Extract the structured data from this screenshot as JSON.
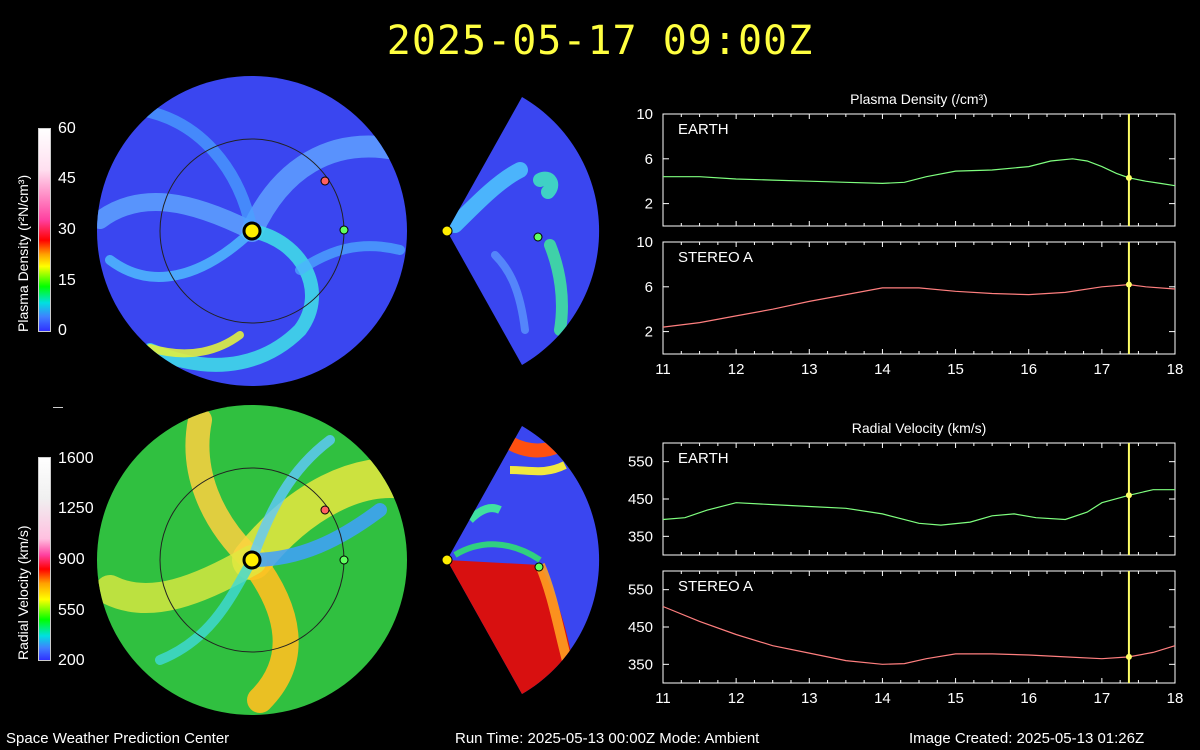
{
  "header": {
    "title": "2025-05-17 09:00Z"
  },
  "footer": {
    "left": "Space Weather Prediction Center",
    "middle": "Run Time: 2025-05-13 00:00Z  Mode: Ambient",
    "right": "Image Created: 2025-05-13 01:26Z"
  },
  "colorbars": {
    "density": {
      "title": "Plasma Density (r²N/cm³)",
      "ticks": [
        "60",
        "45",
        "30",
        "15",
        "0"
      ]
    },
    "velocity": {
      "title": "Radial Velocity (km/s)",
      "ticks": [
        "1600",
        "1250",
        "900",
        "550",
        "200"
      ]
    }
  },
  "colors": {
    "earth_line": "#7fff7f",
    "stereo_line": "#ff7f7f",
    "current_time": "#ffff66",
    "axes": "#ffffff"
  },
  "chart_data": [
    {
      "type": "line",
      "title": "Plasma Density (/cm³)",
      "subplots": [
        {
          "label": "EARTH",
          "ylim": [
            0,
            10
          ],
          "yticks": [
            2,
            6,
            10
          ],
          "x": [
            11,
            11.5,
            12,
            12.5,
            13,
            13.5,
            14,
            14.3,
            14.6,
            15,
            15.5,
            16,
            16.3,
            16.6,
            16.8,
            17,
            17.2,
            17.37,
            17.6,
            17.8,
            18
          ],
          "values": [
            4.4,
            4.4,
            4.2,
            4.1,
            4.0,
            3.9,
            3.8,
            3.9,
            4.4,
            4.9,
            5.0,
            5.3,
            5.8,
            6.0,
            5.8,
            5.3,
            4.7,
            4.3,
            4.0,
            3.8,
            3.6
          ],
          "marker_value": 4.3
        },
        {
          "label": "STEREO A",
          "ylim": [
            0,
            10
          ],
          "yticks": [
            2,
            6,
            10
          ],
          "x": [
            11,
            11.5,
            12,
            12.5,
            13,
            13.5,
            14,
            14.5,
            15,
            15.5,
            16,
            16.5,
            17,
            17.37,
            17.6,
            18
          ],
          "values": [
            2.4,
            2.8,
            3.4,
            4.0,
            4.7,
            5.3,
            5.9,
            5.9,
            5.6,
            5.4,
            5.3,
            5.5,
            6.0,
            6.2,
            6.0,
            5.8
          ],
          "marker_value": 6.2
        }
      ],
      "x_ticks": [
        "11",
        "12",
        "13",
        "14",
        "15",
        "16",
        "17",
        "18"
      ],
      "xlim": [
        11,
        18
      ],
      "current_time_x": 17.37
    },
    {
      "type": "line",
      "title": "Radial Velocity (km/s)",
      "subplots": [
        {
          "label": "EARTH",
          "ylim": [
            300,
            600
          ],
          "yticks": [
            350,
            450,
            550
          ],
          "x": [
            11,
            11.3,
            11.6,
            12,
            12.5,
            13,
            13.5,
            14,
            14.5,
            14.8,
            15.2,
            15.5,
            15.8,
            16.1,
            16.5,
            16.8,
            17,
            17.37,
            17.7,
            18
          ],
          "values": [
            395,
            400,
            420,
            440,
            435,
            430,
            425,
            410,
            385,
            380,
            388,
            405,
            410,
            400,
            395,
            415,
            440,
            460,
            475,
            475
          ],
          "marker_value": 460
        },
        {
          "label": "STEREO A",
          "ylim": [
            300,
            600
          ],
          "yticks": [
            350,
            450,
            550
          ],
          "x": [
            11,
            11.5,
            12,
            12.5,
            13,
            13.5,
            14,
            14.3,
            14.6,
            15,
            15.5,
            16,
            16.5,
            17,
            17.37,
            17.7,
            18
          ],
          "values": [
            505,
            465,
            430,
            400,
            380,
            360,
            350,
            352,
            365,
            378,
            378,
            375,
            370,
            365,
            370,
            382,
            400
          ],
          "marker_value": 370
        }
      ],
      "x_ticks": [
        "11",
        "12",
        "13",
        "14",
        "15",
        "16",
        "17",
        "18"
      ],
      "xlim": [
        11,
        18
      ],
      "current_time_x": 17.37
    }
  ]
}
